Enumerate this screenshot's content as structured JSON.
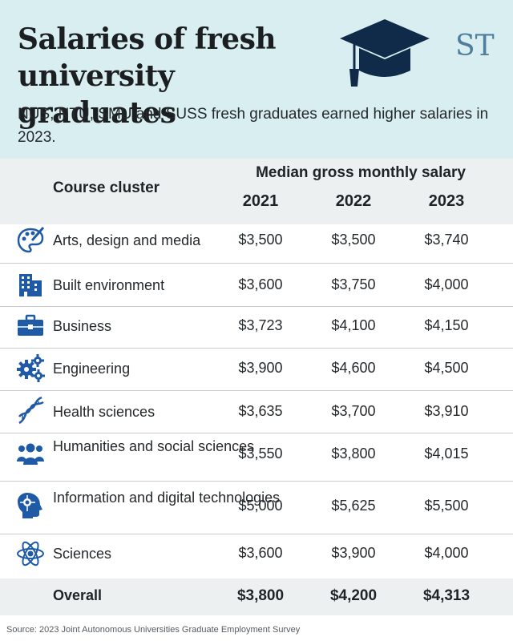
{
  "header": {
    "title": "Salaries of fresh university graduates",
    "subtitle": "NUS, NTU, SMU and SUSS fresh graduates earned higher salaries in 2023.",
    "logo_text": "ST",
    "icon": "graduation-cap-icon"
  },
  "colors": {
    "header_bg": "#d8eef1",
    "band_bg": "#edf0f1",
    "icon_blue": "#1f5aa6",
    "cap_navy": "#102b4a"
  },
  "chart_data": {
    "type": "table",
    "column_header_left": "Course cluster",
    "column_header_group": "Median gross monthly salary",
    "years": [
      "2021",
      "2022",
      "2023"
    ],
    "rows": [
      {
        "label": "Arts, design and media",
        "icon": "palette-icon",
        "values": [
          "$3,500",
          "$3,500",
          "$3,740"
        ]
      },
      {
        "label": "Built environment",
        "icon": "building-icon",
        "values": [
          "$3,600",
          "$3,750",
          "$4,000"
        ]
      },
      {
        "label": "Business",
        "icon": "briefcase-icon",
        "values": [
          "$3,723",
          "$4,100",
          "$4,150"
        ]
      },
      {
        "label": "Engineering",
        "icon": "gears-icon",
        "values": [
          "$3,900",
          "$4,600",
          "$4,500"
        ]
      },
      {
        "label": "Health sciences",
        "icon": "dna-icon",
        "values": [
          "$3,635",
          "$3,700",
          "$3,910"
        ]
      },
      {
        "label": "Humanities and social sciences",
        "icon": "people-icon",
        "values": [
          "$3,550",
          "$3,800",
          "$4,015"
        ]
      },
      {
        "label": "Information and digital technologies",
        "icon": "circuit-head-icon",
        "values": [
          "$5,000",
          "$5,625",
          "$5,500"
        ]
      },
      {
        "label": "Sciences",
        "icon": "atom-icon",
        "values": [
          "$3,600",
          "$3,900",
          "$4,000"
        ]
      }
    ],
    "overall": {
      "label": "Overall",
      "values": [
        "$3,800",
        "$4,200",
        "$4,313"
      ]
    }
  },
  "source": "Source: 2023 Joint Autonomous Universities Graduate Employment Survey"
}
